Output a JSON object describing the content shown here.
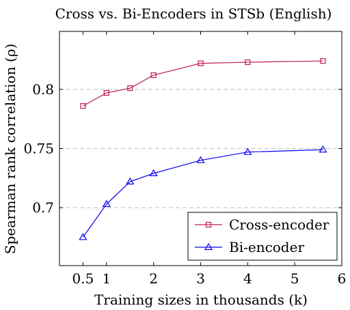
{
  "chart_data": {
    "type": "line",
    "title": "Cross vs. Bi-Encoders in STSb (English)",
    "xlabel": "Training sizes in thousands (k)",
    "ylabel": "Spearman rank correlation (ρ)",
    "xlim": [
      0,
      6
    ],
    "ylim": [
      0.651,
      0.849
    ],
    "x_ticks": [
      0.5,
      1,
      2,
      3,
      4,
      5,
      6
    ],
    "x_tick_labels": [
      "0.5",
      "1",
      "2",
      "3",
      "4",
      "5",
      "6"
    ],
    "y_ticks": [
      0.7,
      0.75,
      0.8
    ],
    "y_tick_labels": [
      "0.7",
      "0.75",
      "0.8"
    ],
    "grid": "horizontal dashed",
    "legend_position": "bottom-right",
    "series": [
      {
        "name": "Cross-encoder",
        "color": "#c0185a",
        "marker": "square",
        "x": [
          0.5,
          1,
          1.5,
          2,
          3,
          4,
          5.6
        ],
        "y": [
          0.786,
          0.797,
          0.801,
          0.812,
          0.822,
          0.823,
          0.824
        ]
      },
      {
        "name": "Bi-encoder",
        "color": "#0a00f0",
        "marker": "triangle",
        "x": [
          0.5,
          1,
          1.5,
          2,
          3,
          4,
          5.6
        ],
        "y": [
          0.675,
          0.703,
          0.722,
          0.729,
          0.74,
          0.747,
          0.749
        ]
      }
    ]
  }
}
